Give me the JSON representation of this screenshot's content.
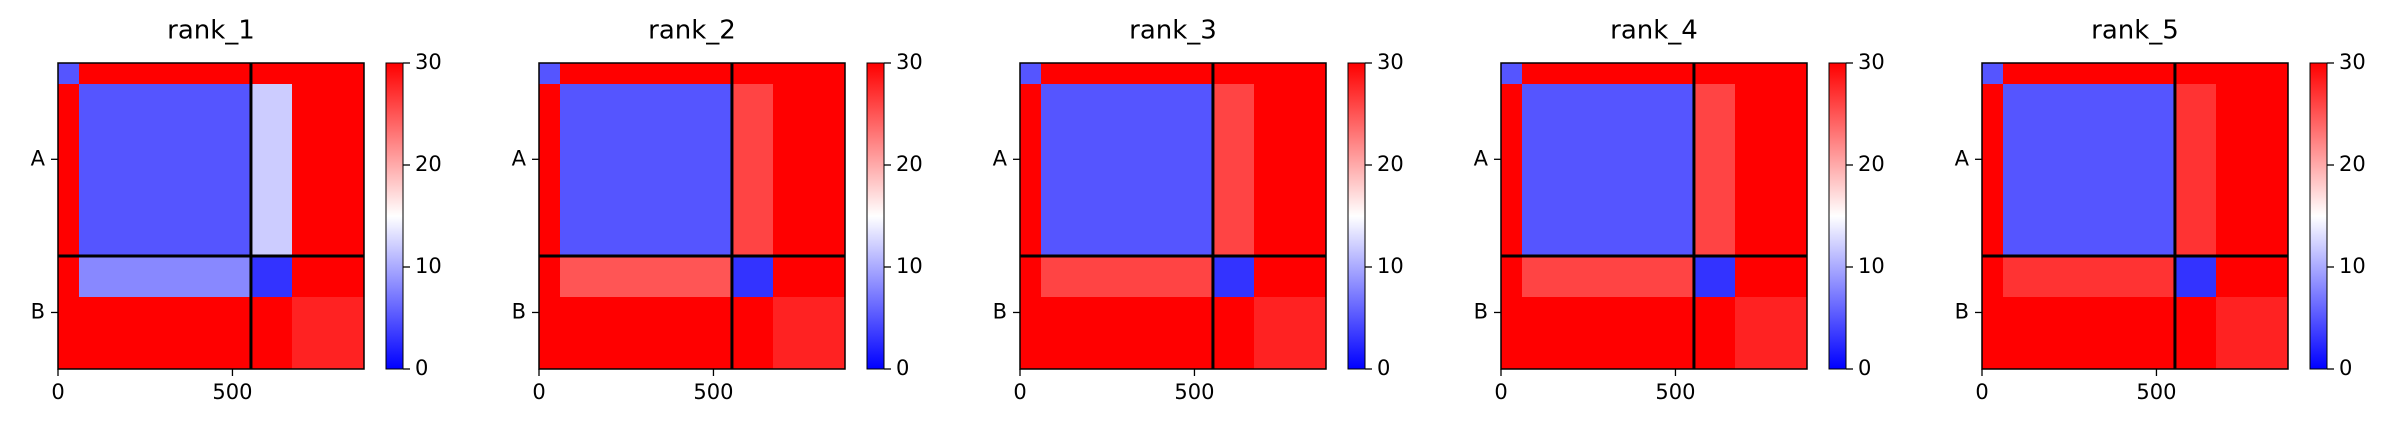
{
  "chart_data": [
    {
      "type": "heatmap",
      "title": "rank_1",
      "x_edges": [
        0,
        60,
        553,
        670,
        877
      ],
      "values": [
        [
          5,
          30,
          30,
          30
        ],
        [
          30,
          5,
          12,
          30
        ],
        [
          30,
          8,
          3,
          30
        ],
        [
          30,
          30,
          30,
          28
        ]
      ],
      "xlim": [
        0,
        877
      ],
      "xticks": [
        0,
        500
      ],
      "ylim": [
        877,
        0
      ],
      "yticks": [
        {
          "value": 276,
          "label": "A"
        },
        {
          "value": 715,
          "label": "B"
        }
      ],
      "boundaries": [
        553
      ],
      "colormap": [
        "#0000ff",
        "#ffffff",
        "#ff0000"
      ],
      "clim": [
        0,
        30
      ],
      "cticks": [
        0,
        10,
        20,
        30
      ]
    },
    {
      "type": "heatmap",
      "title": "rank_2",
      "x_edges": [
        0,
        60,
        553,
        670,
        877
      ],
      "values": [
        [
          5,
          30,
          30,
          30
        ],
        [
          30,
          5,
          26,
          30
        ],
        [
          30,
          25,
          3,
          30
        ],
        [
          30,
          30,
          30,
          28
        ]
      ],
      "xlim": [
        0,
        877
      ],
      "xticks": [
        0,
        500
      ],
      "ylim": [
        877,
        0
      ],
      "yticks": [
        {
          "value": 276,
          "label": "A"
        },
        {
          "value": 715,
          "label": "B"
        }
      ],
      "boundaries": [
        553
      ],
      "colormap": [
        "#0000ff",
        "#ffffff",
        "#ff0000"
      ],
      "clim": [
        0,
        30
      ],
      "cticks": [
        0,
        10,
        20,
        30
      ]
    },
    {
      "type": "heatmap",
      "title": "rank_3",
      "x_edges": [
        0,
        60,
        553,
        670,
        877
      ],
      "values": [
        [
          5,
          30,
          30,
          30
        ],
        [
          30,
          5,
          26,
          30
        ],
        [
          30,
          26,
          3,
          30
        ],
        [
          30,
          30,
          30,
          28
        ]
      ],
      "xlim": [
        0,
        877
      ],
      "xticks": [
        0,
        500
      ],
      "ylim": [
        877,
        0
      ],
      "yticks": [
        {
          "value": 276,
          "label": "A"
        },
        {
          "value": 715,
          "label": "B"
        }
      ],
      "boundaries": [
        553
      ],
      "colormap": [
        "#0000ff",
        "#ffffff",
        "#ff0000"
      ],
      "clim": [
        0,
        30
      ],
      "cticks": [
        0,
        10,
        20,
        30
      ]
    },
    {
      "type": "heatmap",
      "title": "rank_4",
      "x_edges": [
        0,
        60,
        553,
        670,
        877
      ],
      "values": [
        [
          5,
          30,
          30,
          30
        ],
        [
          30,
          5,
          26,
          30
        ],
        [
          30,
          26,
          3,
          30
        ],
        [
          30,
          30,
          30,
          28
        ]
      ],
      "xlim": [
        0,
        877
      ],
      "xticks": [
        0,
        500
      ],
      "ylim": [
        877,
        0
      ],
      "yticks": [
        {
          "value": 276,
          "label": "A"
        },
        {
          "value": 715,
          "label": "B"
        }
      ],
      "boundaries": [
        553
      ],
      "colormap": [
        "#0000ff",
        "#ffffff",
        "#ff0000"
      ],
      "clim": [
        0,
        30
      ],
      "cticks": [
        0,
        10,
        20,
        30
      ]
    },
    {
      "type": "heatmap",
      "title": "rank_5",
      "x_edges": [
        0,
        60,
        553,
        670,
        877
      ],
      "values": [
        [
          5,
          30,
          30,
          30
        ],
        [
          30,
          5,
          27,
          30
        ],
        [
          30,
          27,
          3,
          30
        ],
        [
          30,
          30,
          30,
          28
        ]
      ],
      "xlim": [
        0,
        877
      ],
      "xticks": [
        0,
        500
      ],
      "ylim": [
        877,
        0
      ],
      "yticks": [
        {
          "value": 276,
          "label": "A"
        },
        {
          "value": 715,
          "label": "B"
        }
      ],
      "boundaries": [
        553
      ],
      "colormap": [
        "#0000ff",
        "#ffffff",
        "#ff0000"
      ],
      "clim": [
        0,
        30
      ],
      "cticks": [
        0,
        10,
        20,
        30
      ]
    }
  ]
}
